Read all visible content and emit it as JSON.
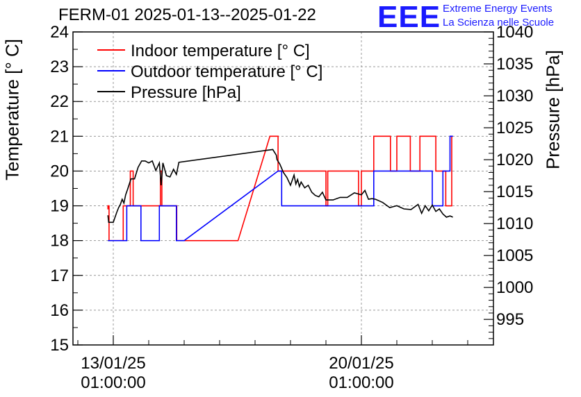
{
  "chart_data": {
    "type": "line",
    "title": "FERM-01 2025-01-13--2025-01-22",
    "ylabel": "Temperature [° C]",
    "y2label": "Pressure [hPa]",
    "ylim": [
      15,
      24
    ],
    "y2lim": [
      991,
      1040
    ],
    "x_ticks": [
      {
        "label1": "13/01/25",
        "label2": "01:00:00",
        "day": 0
      },
      {
        "label1": "20/01/25",
        "label2": "01:00:00",
        "day": 7
      }
    ],
    "ytick_labels": [
      "15",
      "16",
      "17",
      "18",
      "19",
      "20",
      "21",
      "22",
      "23",
      "24"
    ],
    "y2tick_labels": [
      "995",
      "1000",
      "1005",
      "1010",
      "1015",
      "1020",
      "1025",
      "1030",
      "1035",
      "1040"
    ],
    "legend_position": "top-left",
    "grid": true,
    "series": [
      {
        "name": "Indoor temperature [° C]",
        "color": "#ff0000",
        "axis": "left",
        "x": [
          -0.15,
          -0.15,
          -0.12,
          -0.12,
          -0.1,
          -0.1,
          0.28,
          0.28,
          0.32,
          0.32,
          0.48,
          0.48,
          0.56,
          0.56,
          0.9,
          0.9,
          1.33,
          1.33,
          1.37,
          1.37,
          1.75,
          1.75,
          1.79,
          1.79,
          3.52,
          3.52,
          4.42,
          4.65,
          4.65,
          4.8,
          4.8,
          6.0,
          6.0,
          6.05,
          6.05,
          6.92,
          6.92,
          7.0,
          7.0,
          7.35,
          7.35,
          7.82,
          7.82,
          8.0,
          8.0,
          8.38,
          8.38,
          8.65,
          8.65,
          9.1,
          9.1,
          9.3,
          9.3,
          9.38,
          9.38,
          9.55,
          9.55,
          9.58
        ],
        "y": [
          18.9,
          19.0,
          19.0,
          18.0,
          18.0,
          18.0,
          18.0,
          19.0,
          19.0,
          19.0,
          19.0,
          20.0,
          20.0,
          19.0,
          19.0,
          19.0,
          19.0,
          20.0,
          20.0,
          19.0,
          19.0,
          19.0,
          19.0,
          18.0,
          18.0,
          18.0,
          21.0,
          21.0,
          20.0,
          20.0,
          20.0,
          20.0,
          19.0,
          19.0,
          20.0,
          20.0,
          19.0,
          19.0,
          20.0,
          20.0,
          21.0,
          21.0,
          20.0,
          20.0,
          21.0,
          21.0,
          20.0,
          20.0,
          21.0,
          21.0,
          20.0,
          20.0,
          20.0,
          20.0,
          19.0,
          19.0,
          21.0,
          21.0
        ]
      },
      {
        "name": "Outdoor temperature [° C]",
        "color": "#0000ff",
        "axis": "left",
        "x": [
          -0.15,
          0.32,
          0.32,
          0.38,
          0.38,
          0.78,
          0.78,
          1.3,
          1.3,
          1.38,
          1.38,
          1.78,
          1.78,
          2.0,
          4.65,
          4.75,
          4.75,
          7.35,
          7.35,
          9.0,
          9.0,
          9.2,
          9.2,
          9.3,
          9.3,
          9.5,
          9.5,
          9.58
        ],
        "y": [
          18.0,
          18.0,
          18.0,
          18.0,
          19.0,
          19.0,
          18.0,
          18.0,
          19.0,
          19.0,
          19.0,
          19.0,
          18.0,
          18.0,
          20.0,
          20.0,
          19.0,
          19.0,
          20.0,
          20.0,
          19.0,
          19.0,
          19.0,
          19.0,
          20.0,
          20.0,
          21.0,
          21.0
        ]
      },
      {
        "name": "Pressure [hPa]",
        "color": "#000000",
        "axis": "right",
        "x": [
          -0.15,
          -0.13,
          -0.1,
          0.0,
          0.1,
          0.15,
          0.2,
          0.25,
          0.3,
          0.35,
          0.4,
          0.5,
          0.6,
          0.7,
          0.8,
          0.9,
          1.0,
          1.1,
          1.2,
          1.3,
          1.35,
          1.4,
          1.5,
          1.6,
          1.7,
          1.78,
          1.85,
          4.5,
          4.6,
          4.62,
          4.7,
          4.8,
          4.9,
          5.0,
          5.1,
          5.15,
          5.2,
          5.25,
          5.3,
          5.4,
          5.5,
          5.6,
          5.7,
          5.8,
          5.9,
          6.0,
          6.2,
          6.4,
          6.6,
          6.8,
          7.0,
          7.1,
          7.2,
          7.3,
          7.4,
          7.6,
          7.8,
          8.0,
          8.2,
          8.4,
          8.6,
          8.7,
          8.8,
          8.9,
          9.0,
          9.1,
          9.2,
          9.3,
          9.4,
          9.5,
          9.58
        ],
        "y": [
          1011.3,
          1010.2,
          1010.2,
          1010.2,
          1011.8,
          1012.5,
          1013.0,
          1013.8,
          1013.2,
          1014.5,
          1015.3,
          1017.0,
          1017.0,
          1018.8,
          1019.8,
          1019.8,
          1019.5,
          1019.8,
          1018.3,
          1019.5,
          1016.0,
          1019.5,
          1017.5,
          1017.3,
          1018.5,
          1017.7,
          1019.6,
          1021.6,
          1020.7,
          1020.0,
          1019.3,
          1018.0,
          1017.2,
          1016.0,
          1017.6,
          1016.2,
          1016.9,
          1015.8,
          1016.5,
          1015.6,
          1016.0,
          1014.9,
          1014.4,
          1014.2,
          1014.9,
          1013.7,
          1013.7,
          1014.1,
          1014.1,
          1014.8,
          1014.5,
          1015.2,
          1013.8,
          1013.9,
          1013.8,
          1013.3,
          1012.5,
          1012.8,
          1012.3,
          1012.2,
          1013.0,
          1011.6,
          1012.8,
          1012.0,
          1012.9,
          1011.9,
          1012.3,
          1011.5,
          1011.0,
          1011.2,
          1011.0
        ]
      }
    ]
  },
  "logo": {
    "mark": "EEE",
    "line1": "Extreme Energy Events",
    "line2": "La Scienza nelle Scuole"
  }
}
